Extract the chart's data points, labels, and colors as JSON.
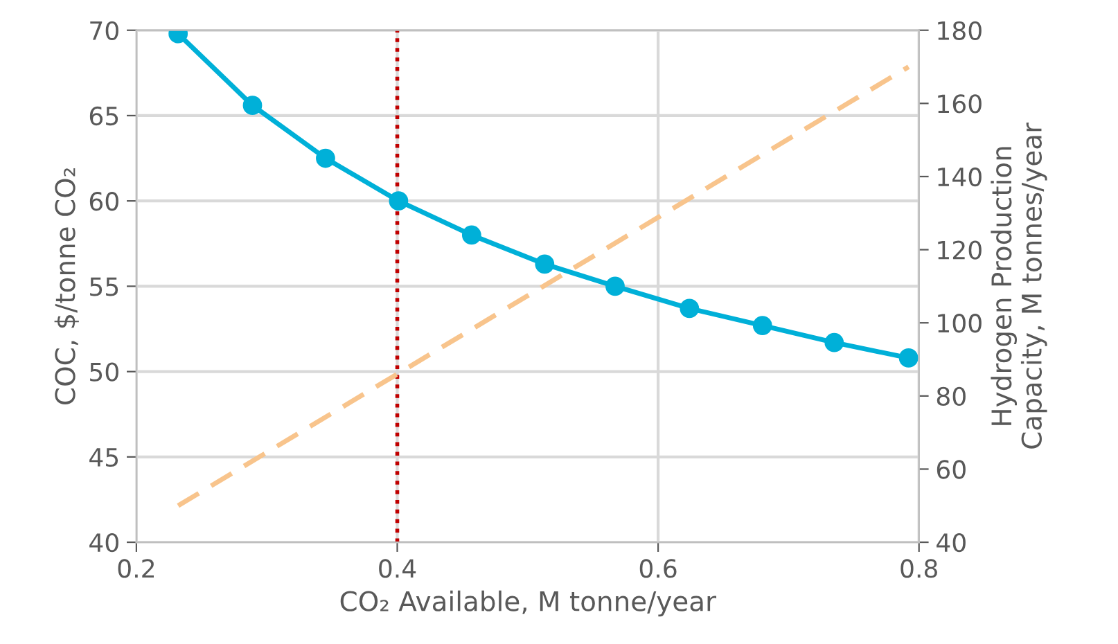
{
  "chart_data": {
    "type": "line",
    "xlabel": "CO₂ Available, M tonne/year",
    "ylabel": "COC, $/tonne CO₂",
    "y2label": "Hydrogen Production\nCapacity, M tonnes/year",
    "xlim": [
      0.2,
      0.8
    ],
    "xticks": [
      0.2,
      0.4,
      0.6,
      0.8
    ],
    "ylim": [
      40,
      70
    ],
    "yticks": [
      40,
      45,
      50,
      55,
      60,
      65,
      70
    ],
    "y2lim": [
      40,
      180
    ],
    "y2ticks": [
      40,
      60,
      80,
      100,
      120,
      140,
      160,
      180
    ],
    "grid": true,
    "series": [
      {
        "color": "#00b0d8",
        "marker": "circle",
        "line_style": "solid",
        "x": [
          0.232,
          0.289,
          0.345,
          0.401,
          0.457,
          0.513,
          0.567,
          0.624,
          0.68,
          0.735,
          0.792
        ],
        "values": [
          69.8,
          65.6,
          62.5,
          60.0,
          58.0,
          56.3,
          55.0,
          53.7,
          52.7,
          51.7,
          50.8
        ]
      },
      {
        "color": "#f8c48c",
        "marker": "none",
        "line_style": "dashed",
        "axis": "y2",
        "x": [
          0.232,
          0.792
        ],
        "values": [
          50,
          170
        ]
      }
    ],
    "ref_lines": [
      {
        "axis": "x",
        "value": 0.4,
        "color": "#c00000",
        "line_style": "dotted"
      }
    ]
  }
}
